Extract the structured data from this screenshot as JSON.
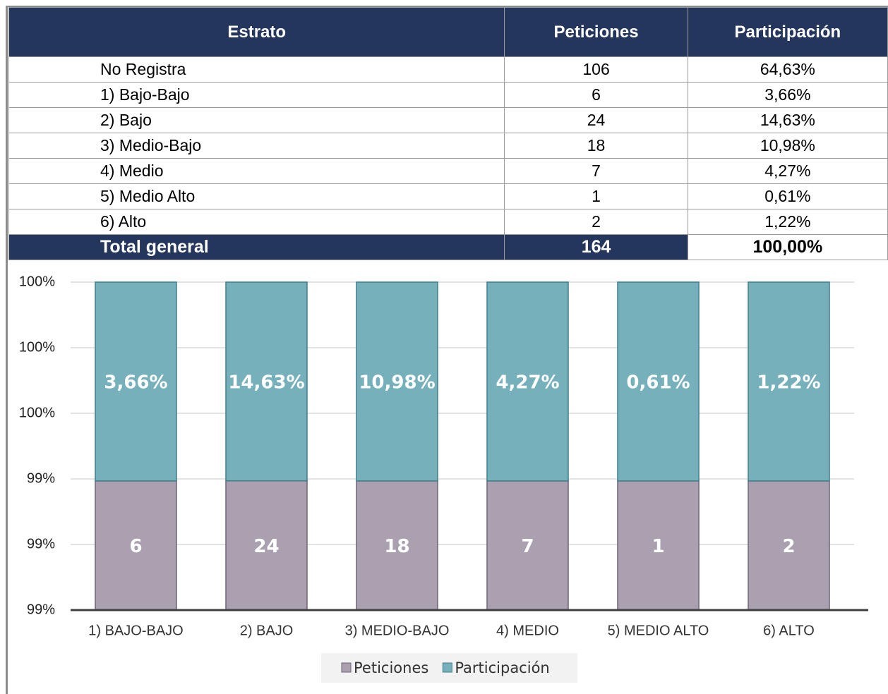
{
  "table": {
    "header": [
      "Estrato",
      "Peticiones",
      "Participación"
    ],
    "rows": [
      [
        "No Registra",
        "106",
        "64,63%"
      ],
      [
        "1) Bajo-Bajo",
        "6",
        "3,66%"
      ],
      [
        "2) Bajo",
        "24",
        "14,63%"
      ],
      [
        "3) Medio-Bajo",
        "18",
        "10,98%"
      ],
      [
        "4) Medio",
        "7",
        "4,27%"
      ],
      [
        "5) Medio Alto",
        "1",
        "0,61%"
      ],
      [
        "6) Alto",
        "2",
        "1,22%"
      ]
    ],
    "total": [
      "Total general",
      "164",
      "100,00%"
    ]
  },
  "chart_data": {
    "type": "bar",
    "stacking": "percent",
    "categories": [
      "1) BAJO-BAJO",
      "2) BAJO",
      "3) MEDIO-BAJO",
      "4) MEDIO",
      "5) MEDIO ALTO",
      "6) ALTO"
    ],
    "series": [
      {
        "name": "Peticiones",
        "color": "#aaa0b0",
        "values": [
          6,
          24,
          18,
          7,
          1,
          2
        ],
        "value_labels": [
          "6",
          "24",
          "18",
          "7",
          "1",
          "2"
        ]
      },
      {
        "name": "Participación",
        "color": "#75b0bb",
        "values": [
          0.0366,
          0.1463,
          0.1098,
          0.0427,
          0.0061,
          0.0122
        ],
        "value_labels": [
          "3,66%",
          "14,63%",
          "10,98%",
          "4,27%",
          "0,61%",
          "1,22%"
        ]
      }
    ],
    "ylim": [
      99,
      100
    ],
    "yticks": [
      {
        "value": 99,
        "label": "99%"
      },
      {
        "value": 99.2,
        "label": "99%"
      },
      {
        "value": 99.4,
        "label": "99%"
      },
      {
        "value": 99.6,
        "label": "100%"
      },
      {
        "value": 99.8,
        "label": "100%"
      },
      {
        "value": 100,
        "label": "100%"
      }
    ],
    "grid": true,
    "legend": "bottom"
  }
}
